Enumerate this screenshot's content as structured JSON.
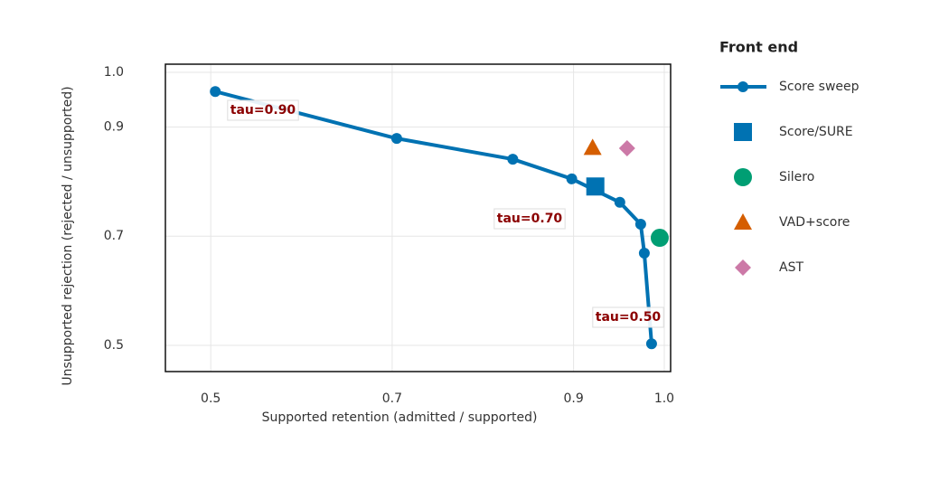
{
  "chart_data": {
    "type": "line",
    "x_label": "Supported retention (admitted / supported)",
    "y_label": "Unsupported rejection (rejected / unsupported)",
    "xlim": [
      0.45,
      1.007
    ],
    "ylim": [
      0.452,
      1.015
    ],
    "xticks": [
      0.5,
      0.7,
      0.9,
      {
        "value": 1.0,
        "label": "1.0"
      }
    ],
    "yticks": [
      0.5,
      0.7,
      0.9,
      {
        "value": 1.0,
        "label": "1.0"
      }
    ],
    "grid": true,
    "legend_title": "Front end",
    "legend_position": "right",
    "annotations": [
      "tau=0.90",
      "tau=0.70",
      "tau=0.50"
    ],
    "series": [
      {
        "name": "Score sweep",
        "color": "#0072b2",
        "marker": "line-circle",
        "x": [
          0.505,
          0.705,
          0.833,
          0.898,
          0.951,
          0.974,
          0.978,
          0.986
        ],
        "values": [
          0.965,
          0.879,
          0.841,
          0.805,
          0.762,
          0.722,
          0.669,
          0.503
        ]
      },
      {
        "name": "Score/SURE",
        "color": "#0072b2",
        "marker": "square",
        "x": [
          0.924
        ],
        "values": [
          0.791
        ]
      },
      {
        "name": "Silero",
        "color": "#009e73",
        "marker": "circle",
        "x": [
          0.995
        ],
        "values": [
          0.697
        ]
      },
      {
        "name": "VAD+score",
        "color": "#d55e00",
        "marker": "triangle",
        "x": [
          0.921
        ],
        "values": [
          0.862
        ]
      },
      {
        "name": "AST",
        "color": "#cc79a7",
        "marker": "diamond",
        "x": [
          0.959
        ],
        "values": [
          0.861
        ]
      }
    ]
  }
}
